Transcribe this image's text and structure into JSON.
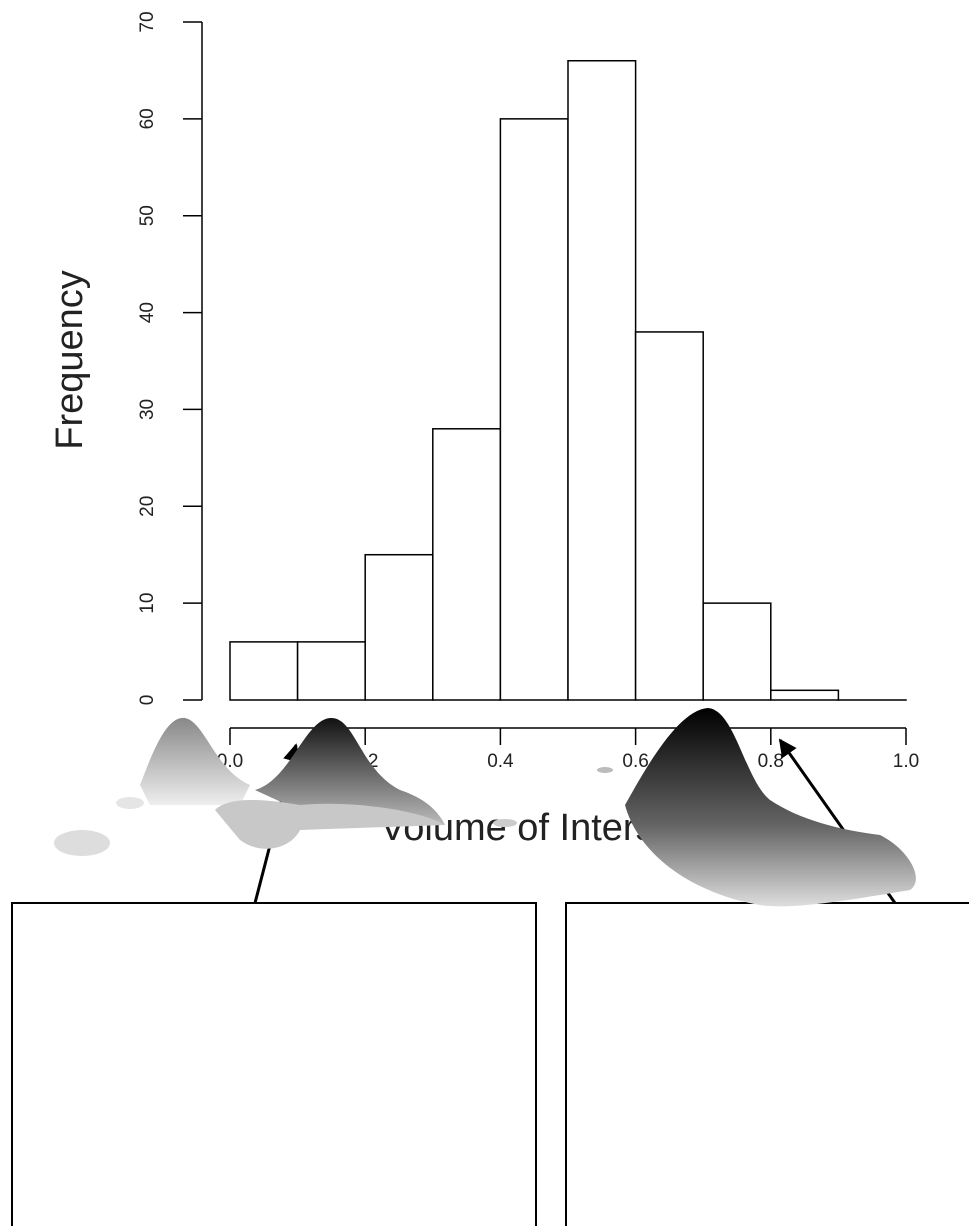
{
  "chart_data": {
    "type": "histogram",
    "xlabel": "Volume of Intersection",
    "ylabel": "Frequency",
    "bins": [
      0,
      0.1,
      0.2,
      0.3,
      0.4,
      0.5,
      0.6,
      0.7,
      0.8,
      0.9,
      1.0
    ],
    "values": [
      6,
      6,
      15,
      28,
      60,
      66,
      38,
      10,
      1,
      0
    ],
    "color": "#ffffff",
    "edgecolor": "#000000",
    "xlim": [
      0,
      1
    ],
    "ylim": [
      0,
      70
    ],
    "xticks": [
      {
        "value": 0,
        "label": "0.0"
      },
      0.2,
      0.4,
      0.6,
      0.8,
      {
        "value": 1,
        "label": "1.0"
      }
    ],
    "yticks": [
      0,
      10,
      20,
      30,
      40,
      50,
      60,
      70
    ]
  }
}
